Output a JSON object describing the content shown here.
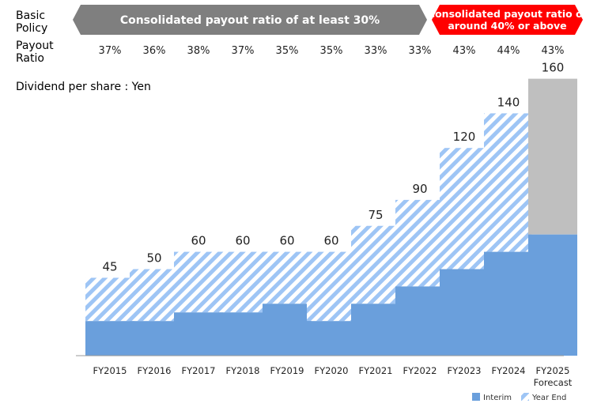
{
  "labels": {
    "basic_policy": [
      "Basic",
      "Policy"
    ],
    "payout_ratio": [
      "Payout",
      "Ratio"
    ],
    "dividend_label": "Dividend per share : Yen"
  },
  "policies": [
    {
      "text": [
        "Consolidated payout ratio of at least 30%"
      ],
      "color": "#7f7f7f",
      "from": "FY2015",
      "to": "FY2022"
    },
    {
      "text": [
        "Consolidated payout ratio of",
        "around 40% or above"
      ],
      "color": "#ff0000",
      "from": "FY2023",
      "to": "FY2025 Forecast"
    }
  ],
  "chart_data": {
    "type": "bar",
    "stacked": true,
    "categories": [
      "FY2015",
      "FY2016",
      "FY2017",
      "FY2018",
      "FY2019",
      "FY2020",
      "FY2021",
      "FY2022",
      "FY2023",
      "FY2024",
      "FY2025|Forecast"
    ],
    "payout_ratios": [
      "37%",
      "36%",
      "38%",
      "37%",
      "35%",
      "35%",
      "33%",
      "33%",
      "43%",
      "44%",
      "43%"
    ],
    "totals": [
      45,
      50,
      60,
      60,
      60,
      60,
      75,
      90,
      120,
      140,
      160
    ],
    "series": [
      {
        "name": "Interim",
        "values": [
          20,
          20,
          25,
          25,
          30,
          20,
          30,
          40,
          50,
          60,
          70
        ],
        "color": "#6a9fdc"
      },
      {
        "name": "Year End",
        "values": [
          25,
          30,
          35,
          35,
          30,
          40,
          45,
          50,
          70,
          80,
          90
        ],
        "color": "#9ec5f5",
        "pattern": "hatched",
        "forecast_color": "#bfbfbf"
      }
    ],
    "ylim": [
      0,
      160
    ],
    "grid": false,
    "legend": "bottom-right"
  }
}
